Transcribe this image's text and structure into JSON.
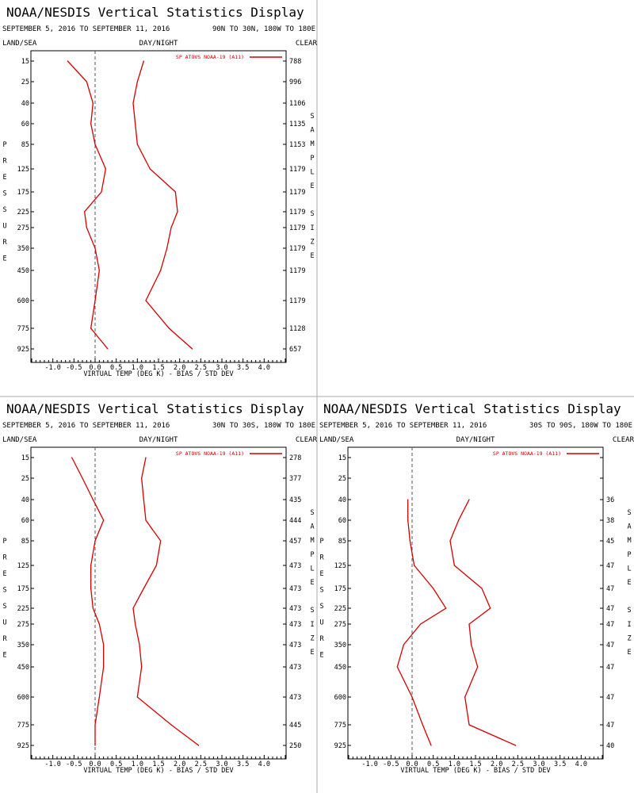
{
  "title": "NOAA/NESDIS Vertical Statistics Display",
  "dates": "SEPTEMBER 5, 2016 TO SEPTEMBER 11, 2016",
  "header": {
    "land_sea": "LAND/SEA",
    "day_night": "DAY/NIGHT",
    "clear": "CLEAR"
  },
  "y_title_letters": [
    "P",
    "R",
    "E",
    "S",
    "S",
    "U",
    "R",
    "E"
  ],
  "right_title_letters": [
    "S",
    "A",
    "M",
    "P",
    "L",
    "E",
    "",
    "S",
    "I",
    "Z",
    "E"
  ],
  "xlabel": "VIRTUAL TEMP (DEG K) - BIAS / STD DEV",
  "legend_label": "SP ATOVS NOAA-19 (A11)",
  "colors": {
    "line": "#d40000",
    "frame": "#000000",
    "zero": "#555555",
    "divider": "#aaaaaa"
  },
  "chart_data": [
    {
      "type": "line",
      "region": "90N TO 30N, 180W TO 180E",
      "xlim": [
        -1.5,
        4.5
      ],
      "xticks": [
        "-1.0",
        "-0.5",
        "0.0",
        "0.5",
        "1.0",
        "1.5",
        "2.0",
        "2.5",
        "3.0",
        "3.5",
        "4.0"
      ],
      "xtick_values": [
        -1.0,
        -0.5,
        0.0,
        0.5,
        1.0,
        1.5,
        2.0,
        2.5,
        3.0,
        3.5,
        4.0
      ],
      "pressure_levels": [
        "15",
        "25",
        "40",
        "60",
        "85",
        "125",
        "175",
        "225",
        "275",
        "350",
        "450",
        "600",
        "775",
        "925"
      ],
      "sample_size": [
        "788",
        "996",
        "1106",
        "1135",
        "1153",
        "1179",
        "1179",
        "1179",
        "1179",
        "1179",
        "1179",
        "1179",
        "1128",
        "657"
      ],
      "series": [
        {
          "name": "bias",
          "values": [
            -0.65,
            -0.2,
            -0.05,
            -0.1,
            0.0,
            0.25,
            0.15,
            -0.25,
            -0.2,
            0.0,
            0.1,
            0.0,
            -0.1,
            0.3
          ]
        },
        {
          "name": "std dev",
          "values": [
            1.15,
            1.0,
            0.9,
            0.95,
            1.0,
            1.3,
            1.9,
            1.95,
            1.8,
            1.7,
            1.55,
            1.2,
            1.75,
            2.3
          ]
        }
      ]
    },
    {
      "type": "line",
      "region": "30N TO 30S, 180W TO 180E",
      "xlim": [
        -1.5,
        4.5
      ],
      "xticks": [
        "-1.0",
        "-0.5",
        "0.0",
        "0.5",
        "1.0",
        "1.5",
        "2.0",
        "2.5",
        "3.0",
        "3.5",
        "4.0"
      ],
      "xtick_values": [
        -1.0,
        -0.5,
        0.0,
        0.5,
        1.0,
        1.5,
        2.0,
        2.5,
        3.0,
        3.5,
        4.0
      ],
      "pressure_levels": [
        "15",
        "25",
        "40",
        "60",
        "85",
        "125",
        "175",
        "225",
        "275",
        "350",
        "450",
        "600",
        "775",
        "925"
      ],
      "sample_size": [
        "278",
        "377",
        "435",
        "444",
        "457",
        "473",
        "473",
        "473",
        "473",
        "473",
        "473",
        "473",
        "445",
        "250"
      ],
      "series": [
        {
          "name": "bias",
          "values": [
            -0.55,
            -0.3,
            -0.05,
            0.2,
            0.0,
            -0.1,
            -0.1,
            -0.05,
            0.1,
            0.2,
            0.2,
            0.1,
            0.0,
            0.0
          ]
        },
        {
          "name": "std dev",
          "values": [
            1.2,
            1.1,
            1.15,
            1.2,
            1.55,
            1.45,
            1.15,
            0.9,
            0.95,
            1.05,
            1.1,
            1.0,
            1.8,
            2.45
          ]
        }
      ]
    },
    {
      "type": "line",
      "region": "30S TO 90S, 180W TO 180E",
      "xlim": [
        -1.5,
        4.5
      ],
      "xticks": [
        "-1.0",
        "-0.5",
        "0.0",
        "0.5",
        "1.0",
        "1.5",
        "2.0",
        "2.5",
        "3.0",
        "3.5",
        "4.0"
      ],
      "xtick_values": [
        -1.0,
        -0.5,
        0.0,
        0.5,
        1.0,
        1.5,
        2.0,
        2.5,
        3.0,
        3.5,
        4.0
      ],
      "pressure_levels": [
        "15",
        "25",
        "40",
        "60",
        "85",
        "125",
        "175",
        "225",
        "275",
        "350",
        "450",
        "600",
        "775",
        "925"
      ],
      "sample_size": [
        "",
        "",
        "36",
        "38",
        "45",
        "47",
        "47",
        "47",
        "47",
        "47",
        "47",
        "47",
        "47",
        "40"
      ],
      "series": [
        {
          "name": "bias",
          "values": [
            null,
            null,
            -0.1,
            -0.1,
            -0.05,
            0.05,
            0.5,
            0.8,
            0.2,
            -0.2,
            -0.35,
            0.0,
            0.25,
            0.45
          ]
        },
        {
          "name": "std dev",
          "values": [
            null,
            null,
            1.35,
            1.1,
            0.9,
            1.0,
            1.65,
            1.85,
            1.35,
            1.4,
            1.55,
            1.25,
            1.35,
            2.45
          ]
        }
      ]
    }
  ]
}
